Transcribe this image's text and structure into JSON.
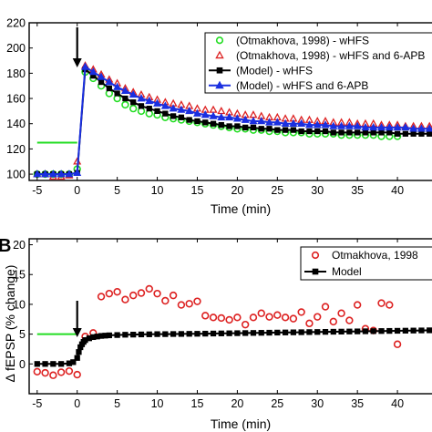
{
  "panel_a": {
    "letter": "",
    "xlabel": "Time (min)",
    "ylabel": "",
    "xticks": [
      "-5",
      "0",
      "5",
      "10",
      "15",
      "20",
      "25",
      "30",
      "35",
      "40",
      "4"
    ],
    "yticks": [
      "100",
      "120",
      "140",
      "160",
      "180",
      "200",
      "220"
    ]
  },
  "panel_b": {
    "letter": "B",
    "xlabel": "Time (min)",
    "ylabel": "Δ fEPSP (% change)",
    "xticks": [
      "-5",
      "0",
      "5",
      "10",
      "15",
      "20",
      "25",
      "30",
      "35",
      "40",
      "4"
    ],
    "yticks": [
      "0",
      "5",
      "10",
      "15",
      "20"
    ]
  },
  "colors": {
    "green": "#22dd22",
    "red": "#dd2222",
    "black": "#000000",
    "blue": "#1a2fe0",
    "stim_marker": "#22dd22"
  },
  "chart_data": [
    {
      "type": "scatter",
      "title": "",
      "xlabel": "Time (min)",
      "ylabel": "",
      "xlim": [
        -6,
        45
      ],
      "ylim": [
        95,
        220
      ],
      "stimulus_arrow_x": 0,
      "baseline_marker": {
        "x": [
          -5,
          0
        ],
        "y": 125
      },
      "legend": "top-right",
      "series": [
        {
          "name": "(Otmakhova, 1998) - wHFS",
          "marker": "circle",
          "color": "#22dd22",
          "x": [
            -5,
            -4,
            -3,
            -2,
            -1,
            0,
            1,
            2,
            3,
            4,
            5,
            6,
            7,
            8,
            9,
            10,
            11,
            12,
            13,
            14,
            15,
            16,
            17,
            18,
            19,
            20,
            21,
            22,
            23,
            24,
            25,
            26,
            27,
            28,
            29,
            30,
            31,
            32,
            33,
            34,
            35,
            36,
            37,
            38,
            39,
            40
          ],
          "y": [
            100,
            100,
            100,
            100,
            100,
            104,
            181,
            176,
            170,
            164,
            160,
            155,
            152,
            150,
            148,
            147,
            145,
            144,
            143,
            142,
            141,
            140,
            139,
            138,
            137,
            136,
            136,
            135,
            135,
            134,
            134,
            133,
            133,
            133,
            132,
            132,
            132,
            132,
            131,
            131,
            131,
            131,
            131,
            130,
            130,
            130
          ]
        },
        {
          "name": "(Otmakhova, 1998) - wHFS and 6-APB",
          "marker": "triangle",
          "color": "#dd2222",
          "x": [
            -5,
            -4,
            -3,
            -2,
            -1,
            0,
            1,
            2,
            3,
            4,
            5,
            6,
            7,
            8,
            9,
            10,
            11,
            12,
            13,
            14,
            15,
            16,
            17,
            18,
            19,
            20,
            21,
            22,
            23,
            24,
            25,
            26,
            27,
            28,
            29,
            30,
            31,
            32,
            33,
            34,
            35,
            36,
            37,
            38,
            39,
            40,
            41,
            42,
            43,
            44,
            45
          ],
          "y": [
            100,
            100,
            98,
            98,
            99,
            110,
            186,
            183,
            179,
            175,
            172,
            168,
            165,
            163,
            161,
            159,
            157,
            156,
            155,
            154,
            152,
            151,
            151,
            150,
            149,
            148,
            147,
            147,
            146,
            145,
            145,
            144,
            144,
            143,
            143,
            142,
            142,
            141,
            141,
            141,
            140,
            140,
            140,
            139,
            139,
            139,
            138,
            138,
            138,
            138,
            137
          ]
        },
        {
          "name": "(Model) - wHFS",
          "marker": "square",
          "color": "#000000",
          "x": [
            -5,
            -4,
            -3,
            -2,
            -1,
            0,
            1,
            2,
            3,
            4,
            5,
            6,
            7,
            8,
            9,
            10,
            11,
            12,
            13,
            14,
            15,
            16,
            17,
            18,
            19,
            20,
            21,
            22,
            23,
            24,
            25,
            26,
            27,
            28,
            29,
            30,
            31,
            32,
            33,
            34,
            35,
            36,
            37,
            38,
            39,
            40,
            41,
            42,
            43,
            44,
            45
          ],
          "y": [
            100,
            100,
            100,
            100,
            100,
            101,
            183,
            178,
            173,
            168,
            164,
            160,
            157,
            154,
            152,
            150,
            148,
            146,
            145,
            143,
            142,
            141,
            140,
            139,
            138,
            138,
            137,
            137,
            136,
            136,
            135,
            135,
            135,
            134,
            134,
            134,
            134,
            133,
            133,
            133,
            133,
            133,
            133,
            133,
            133,
            132,
            132,
            132,
            132,
            132,
            132
          ]
        },
        {
          "name": "(Model) - wHFS and 6-APB",
          "marker": "triangle",
          "color": "#1a2fe0",
          "x": [
            -5,
            -4,
            -3,
            -2,
            -1,
            0,
            1,
            2,
            3,
            4,
            5,
            6,
            7,
            8,
            9,
            10,
            11,
            12,
            13,
            14,
            15,
            16,
            17,
            18,
            19,
            20,
            21,
            22,
            23,
            24,
            25,
            26,
            27,
            28,
            29,
            30,
            31,
            32,
            33,
            34,
            35,
            36,
            37,
            38,
            39,
            40,
            41,
            42,
            43,
            44,
            45
          ],
          "y": [
            100,
            100,
            100,
            100,
            100,
            101,
            185,
            181,
            177,
            173,
            169,
            166,
            163,
            160,
            158,
            156,
            154,
            152,
            151,
            150,
            148,
            147,
            146,
            145,
            145,
            144,
            143,
            142,
            142,
            141,
            141,
            140,
            140,
            140,
            139,
            139,
            139,
            138,
            138,
            138,
            138,
            137,
            137,
            137,
            137,
            137,
            137,
            136,
            136,
            136,
            136
          ]
        }
      ]
    },
    {
      "type": "scatter",
      "title": "",
      "xlabel": "Time (min)",
      "ylabel": "Δ fEPSP (% change)",
      "xlim": [
        -6,
        45
      ],
      "ylim": [
        -5,
        21
      ],
      "stimulus_arrow_x": 0,
      "baseline_marker": {
        "x": [
          -5,
          0
        ],
        "y": 5
      },
      "legend": "top-right",
      "series": [
        {
          "name": "Otmakhova, 1998",
          "marker": "circle",
          "color": "#dd2222",
          "x": [
            -5,
            -4,
            -3,
            -2,
            -1,
            0,
            1,
            2,
            3,
            4,
            5,
            6,
            7,
            8,
            9,
            10,
            11,
            12,
            13,
            14,
            15,
            16,
            17,
            18,
            19,
            20,
            21,
            22,
            23,
            24,
            25,
            26,
            27,
            28,
            29,
            30,
            31,
            32,
            33,
            34,
            35,
            36,
            37,
            38,
            39,
            40
          ],
          "y": [
            -1.3,
            -1.5,
            -1.9,
            -1.4,
            -1.2,
            -1.8,
            4.6,
            5.2,
            11.3,
            11.8,
            12.1,
            10.8,
            11.5,
            11.9,
            12.6,
            11.8,
            10.6,
            11.5,
            9.9,
            10.1,
            10.5,
            8.1,
            7.8,
            7.7,
            7.4,
            7.8,
            6.6,
            7.8,
            8.5,
            7.9,
            8.2,
            7.8,
            7.6,
            8.7,
            6.8,
            7.9,
            9.6,
            7.1,
            8.5,
            7.3,
            9.9,
            5.9,
            5.6,
            10.2,
            9.9,
            3.3
          ]
        },
        {
          "name": "Model",
          "marker": "square",
          "color": "#000000",
          "x": [
            -5,
            -4,
            -3,
            -2,
            -1,
            -0.5,
            0,
            0.2,
            0.4,
            0.6,
            0.8,
            1,
            1.5,
            2,
            2.5,
            3,
            3.5,
            4,
            5,
            6,
            7,
            8,
            9,
            10,
            11,
            12,
            13,
            14,
            15,
            16,
            17,
            18,
            19,
            20,
            21,
            22,
            23,
            24,
            25,
            26,
            27,
            28,
            29,
            30,
            31,
            32,
            33,
            34,
            35,
            36,
            37,
            38,
            39,
            40,
            41,
            42,
            43,
            44,
            45
          ],
          "y": [
            0,
            0,
            0,
            0,
            0.1,
            0.3,
            1.0,
            2.0,
            2.8,
            3.3,
            3.7,
            4.0,
            4.3,
            4.5,
            4.6,
            4.7,
            4.75,
            4.8,
            4.85,
            4.9,
            4.92,
            4.95,
            4.97,
            5.0,
            5.0,
            5.02,
            5.03,
            5.05,
            5.06,
            5.08,
            5.1,
            5.12,
            5.14,
            5.16,
            5.18,
            5.2,
            5.22,
            5.24,
            5.26,
            5.28,
            5.3,
            5.32,
            5.34,
            5.36,
            5.38,
            5.4,
            5.42,
            5.44,
            5.46,
            5.48,
            5.5,
            5.52,
            5.54,
            5.56,
            5.58,
            5.6,
            5.62,
            5.64,
            5.66
          ]
        }
      ]
    }
  ]
}
